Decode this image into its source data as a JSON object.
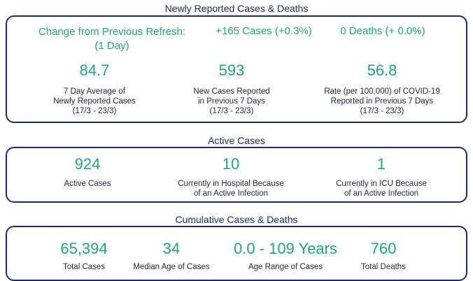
{
  "newly_reported": {
    "title": "Newly Reported Cases & Deaths",
    "change_label_line1": "Change from Previous Refresh:",
    "change_label_line2": "(1 Day)",
    "cases_change": "+165 Cases (+0.3%)",
    "deaths_change": "0 Deaths (+ 0.0%)",
    "stats": [
      {
        "value": "84.7",
        "line1": "7 Day Average of",
        "line2": "Newly Reported Cases",
        "line3": "(17/3 - 23/3)"
      },
      {
        "value": "593",
        "line1": "New Cases Reported",
        "line2": "in Previous 7 Days",
        "line3": "(17/3 - 23/3)"
      },
      {
        "value": "56.8",
        "line1": "Rate (per 100,000) of COVID-19",
        "line2": "Reported in Previous 7 Days",
        "line3": "(17/3 - 23/3)"
      }
    ]
  },
  "active_cases": {
    "title": "Active Cases",
    "stats": [
      {
        "value": "924",
        "line1": "Active Cases",
        "line2": ""
      },
      {
        "value": "10",
        "line1": "Currently in Hospital Because",
        "line2": "of an Active Infection"
      },
      {
        "value": "1",
        "line1": "Currently in ICU Because",
        "line2": "of an Active Infection"
      }
    ]
  },
  "cumulative": {
    "title": "Cumulative Cases & Deaths",
    "stats": [
      {
        "value": "65,394",
        "label": "Total Cases"
      },
      {
        "value": "34",
        "label": "Median Age of Cases"
      },
      {
        "value": "0.0 - 109 Years",
        "label": "Age Range of Cases"
      },
      {
        "value": "760",
        "label": "Total Deaths"
      }
    ]
  },
  "colors": {
    "accent_green": "#21a67a",
    "border_navy": "#1d2a73"
  }
}
